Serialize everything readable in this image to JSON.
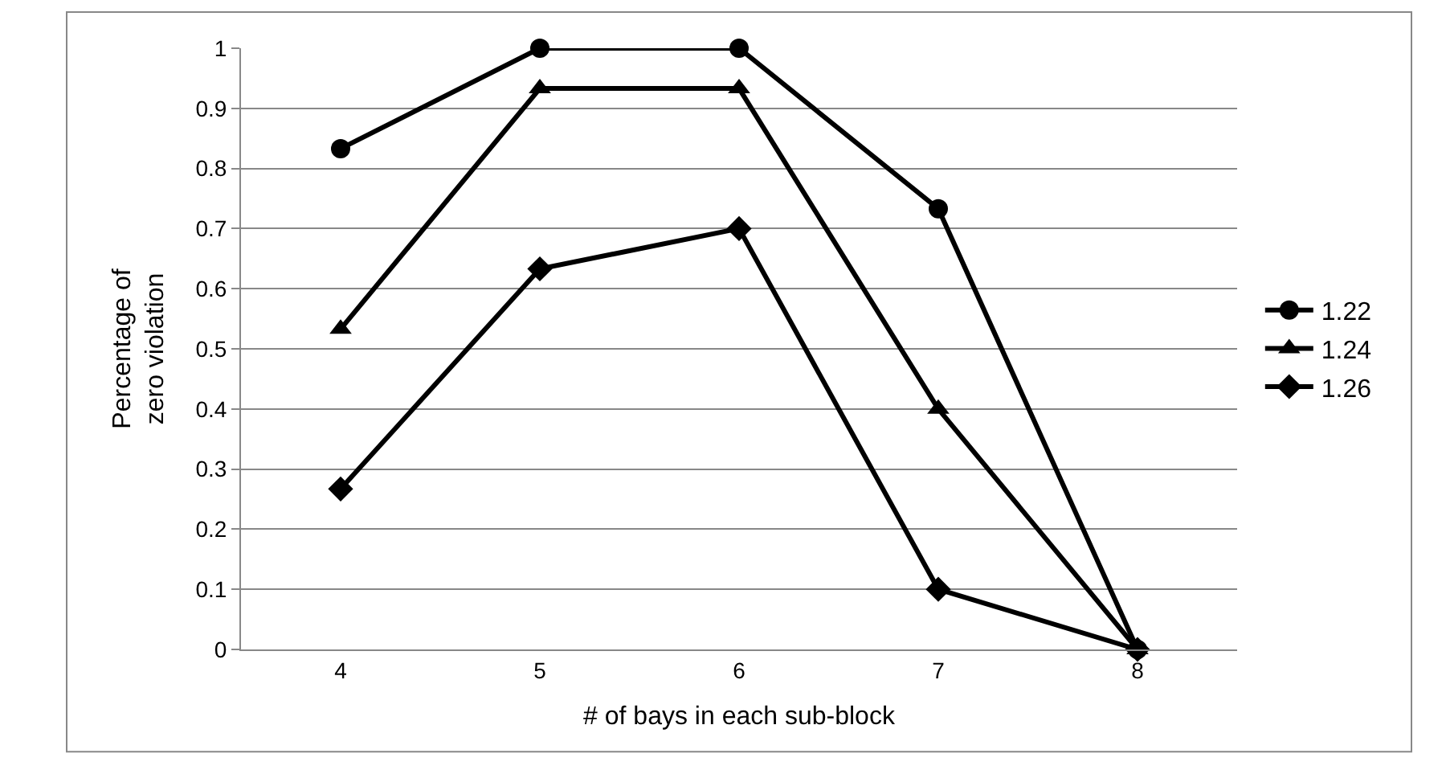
{
  "chart_data": {
    "type": "line",
    "xlabel": "# of bays in each sub-block",
    "ylabel": "Percentage of\nzero violation",
    "categories": [
      "4",
      "5",
      "6",
      "7",
      "8"
    ],
    "series": [
      {
        "name": "1.22",
        "color": "#000000",
        "marker": "circle",
        "values": [
          0.833,
          1,
          1,
          0.733,
          0
        ]
      },
      {
        "name": "1.24",
        "color": "#000000",
        "marker": "triangle",
        "values": [
          0.533,
          0.933,
          0.933,
          0.4,
          0
        ]
      },
      {
        "name": "1.26",
        "color": "#000000",
        "marker": "diamond",
        "values": [
          0.267,
          0.633,
          0.7,
          0.1,
          0
        ]
      }
    ],
    "ylim": [
      0,
      1
    ],
    "yticks": [
      0,
      0.1,
      0.2,
      0.3,
      0.4,
      0.5,
      0.6,
      0.7,
      0.8,
      0.9,
      1
    ],
    "grid": "y",
    "legend": "right"
  }
}
